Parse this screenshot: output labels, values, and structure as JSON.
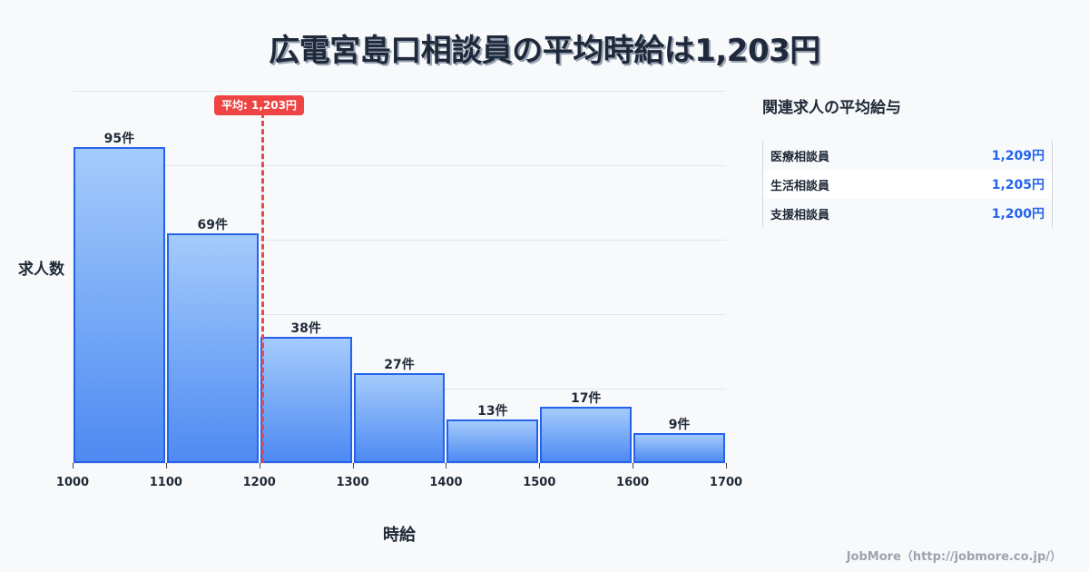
{
  "title": "広電宮島口相談員の平均時給は1,203円",
  "chart_data": {
    "type": "bar",
    "title": "広電宮島口相談員の平均時給は1,203円",
    "xlabel": "時給",
    "ylabel": "求人数",
    "bins": [
      [
        1000,
        1100
      ],
      [
        1100,
        1200
      ],
      [
        1200,
        1300
      ],
      [
        1300,
        1400
      ],
      [
        1400,
        1500
      ],
      [
        1500,
        1600
      ],
      [
        1600,
        1700
      ]
    ],
    "categories": [
      "1000-1100",
      "1100-1200",
      "1200-1300",
      "1300-1400",
      "1400-1500",
      "1500-1600",
      "1600-1700"
    ],
    "values": [
      95,
      69,
      38,
      27,
      13,
      17,
      9
    ],
    "value_labels": [
      "95件",
      "69件",
      "38件",
      "27件",
      "13件",
      "17件",
      "9件"
    ],
    "x_ticks": [
      "1000",
      "1100",
      "1200",
      "1300",
      "1400",
      "1500",
      "1600",
      "1700"
    ],
    "xlim": [
      1000,
      1700
    ],
    "ylim": [
      0,
      111.8
    ],
    "grid": true,
    "average": {
      "value": 1203,
      "label": "平均: 1,203円"
    }
  },
  "side": {
    "title": "関連求人の平均給与",
    "rows": [
      {
        "name": "医療相談員",
        "value": "1,209円"
      },
      {
        "name": "生活相談員",
        "value": "1,205円"
      },
      {
        "name": "支援相談員",
        "value": "1,200円"
      }
    ]
  },
  "footer": "JobMore（http://jobmore.co.jp/）"
}
